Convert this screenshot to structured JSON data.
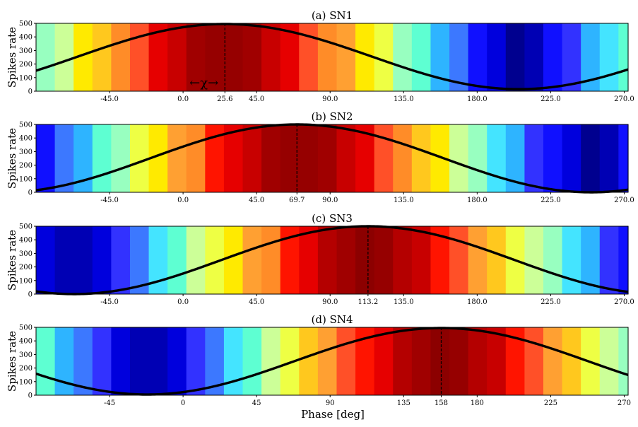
{
  "xlabel": "Phase [deg]",
  "colors": [
    "#00008f",
    "#0000b4",
    "#0000dd",
    "#1010ff",
    "#3232ff",
    "#3c78ff",
    "#2eb4ff",
    "#44e4ff",
    "#5effd2",
    "#98ffc0",
    "#ccff98",
    "#eeff44",
    "#ffea00",
    "#ffc81e",
    "#ffa032",
    "#ff8c28",
    "#ff5028",
    "#ff1400",
    "#e60000",
    "#c80000",
    "#b40000",
    "#a00000",
    "#960000",
    "#8c0000"
  ],
  "chart_data": [
    {
      "type": "line",
      "title": "(a) SN1",
      "xlabel": "",
      "ylabel": "Spikes rate",
      "xlim": [
        -90,
        272.4
      ],
      "ylim": [
        0,
        500
      ],
      "yticks": [
        0,
        100,
        200,
        300,
        400,
        500
      ],
      "xticks": [
        -45.0,
        0.0,
        25.6,
        45.0,
        90.0,
        135.0,
        180.0,
        225.0,
        270.0
      ],
      "xtick_labels": [
        "-45.0",
        "0.0",
        "25.6",
        "45.0",
        "90.0",
        "135.0",
        "180.0",
        "225.0",
        "270.0"
      ],
      "peak_phase": 25.6,
      "peak_label": "25.6",
      "annotation": "←χ→",
      "series": [
        {
          "amplitude": 240,
          "offset": 255,
          "peak": 25.6
        }
      ]
    },
    {
      "type": "line",
      "title": "(b) SN2",
      "xlabel": "",
      "ylabel": "Spikes rate",
      "xlim": [
        -90,
        272.4
      ],
      "ylim": [
        0,
        500
      ],
      "yticks": [
        0,
        100,
        200,
        300,
        400,
        500
      ],
      "xticks": [
        -45.0,
        0.0,
        45.0,
        69.7,
        90.0,
        135.0,
        180.0,
        225.0,
        270.0
      ],
      "xtick_labels": [
        "-45.0",
        "0.0",
        "45.0",
        "69.7",
        "90.0",
        "135.0",
        "180.0",
        "225.0",
        "270.0"
      ],
      "peak_phase": 69.7,
      "peak_label": "69.7",
      "annotation": "",
      "series": [
        {
          "amplitude": 250,
          "offset": 250,
          "peak": 69.7
        }
      ]
    },
    {
      "type": "line",
      "title": "(c) SN3",
      "xlabel": "",
      "ylabel": "Spikes rate",
      "xlim": [
        -90,
        272.4
      ],
      "ylim": [
        0,
        500
      ],
      "yticks": [
        0,
        100,
        200,
        300,
        400,
        500
      ],
      "xticks": [
        -45.0,
        0.0,
        45.0,
        90.0,
        113.2,
        135.0,
        180.0,
        225.0,
        270.0
      ],
      "xtick_labels": [
        "-45.0",
        "0.0",
        "45.0",
        "90.0",
        "113.2",
        "135.0",
        "180.0",
        "225.0",
        "270.0"
      ],
      "peak_phase": 113.2,
      "peak_label": "113.2",
      "annotation": "",
      "series": [
        {
          "amplitude": 250,
          "offset": 250,
          "peak": 113.2
        }
      ]
    },
    {
      "type": "line",
      "title": "(d) SN4",
      "xlabel": "Phase [deg]",
      "ylabel": "Spikes rate",
      "xlim": [
        -90,
        272.4
      ],
      "ylim": [
        0,
        500
      ],
      "yticks": [
        0,
        100,
        200,
        300,
        400,
        500
      ],
      "xticks": [
        -45,
        0,
        45,
        90,
        135,
        158,
        180,
        225,
        270
      ],
      "xtick_labels": [
        "-45",
        "0",
        "45",
        "90",
        "135",
        "158",
        "180",
        "225",
        "270"
      ],
      "peak_phase": 158,
      "peak_label": "158",
      "annotation": "",
      "series": [
        {
          "amplitude": 245,
          "offset": 250,
          "peak": 158
        }
      ]
    }
  ]
}
